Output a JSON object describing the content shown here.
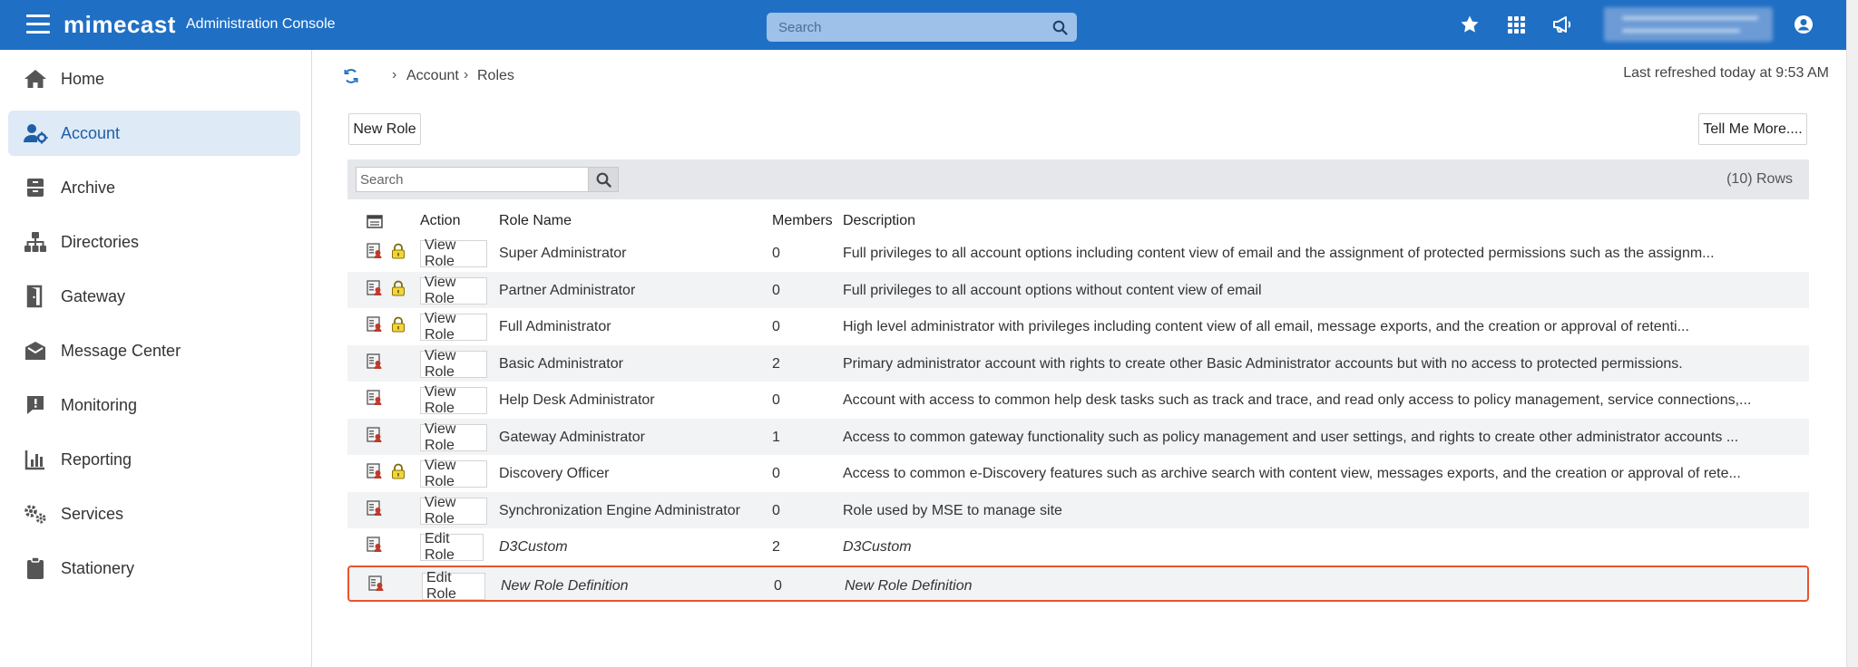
{
  "header": {
    "brand": "mimecast",
    "console_title": "Administration Console",
    "search_placeholder": "Search",
    "icons": [
      "star-icon",
      "apps-grid-icon",
      "megaphone-icon",
      "user-account-icon"
    ],
    "accent_color": "#1f6fc5"
  },
  "sidebar": {
    "items": [
      {
        "label": "Home",
        "icon": "home-icon"
      },
      {
        "label": "Account",
        "icon": "account-settings-icon",
        "active": true
      },
      {
        "label": "Archive",
        "icon": "archive-icon"
      },
      {
        "label": "Directories",
        "icon": "directories-icon"
      },
      {
        "label": "Gateway",
        "icon": "gateway-icon"
      },
      {
        "label": "Message Center",
        "icon": "message-center-icon"
      },
      {
        "label": "Monitoring",
        "icon": "monitoring-icon"
      },
      {
        "label": "Reporting",
        "icon": "reporting-icon"
      },
      {
        "label": "Services",
        "icon": "services-icon"
      },
      {
        "label": "Stationery",
        "icon": "stationery-icon"
      }
    ]
  },
  "breadcrumb": {
    "items": [
      "Account",
      "Roles"
    ]
  },
  "last_refreshed": "Last refreshed today at 9:53 AM",
  "toolbar": {
    "new_role_label": "New Role",
    "tell_me_more_label": "Tell Me More...."
  },
  "grid": {
    "search_placeholder": "Search",
    "row_count": "(10) Rows",
    "columns": {
      "action": "Action",
      "role_name": "Role Name",
      "members": "Members",
      "description": "Description"
    },
    "rows": [
      {
        "action": "View Role",
        "name": "Super Administrator",
        "members": "0",
        "description": "Full privileges to all account options including content view of email and the assignment of protected permissions such as the assignm...",
        "locked": true,
        "italic": false
      },
      {
        "action": "View Role",
        "name": "Partner Administrator",
        "members": "0",
        "description": "Full privileges to all account options without content view of email",
        "locked": true,
        "italic": false
      },
      {
        "action": "View Role",
        "name": "Full Administrator",
        "members": "0",
        "description": "High level administrator with privileges including content view of all email, message exports, and the creation or approval of retenti...",
        "locked": true,
        "italic": false
      },
      {
        "action": "View Role",
        "name": "Basic Administrator",
        "members": "2",
        "description": "Primary administrator account with rights to create other Basic Administrator accounts but with no access to protected permissions.",
        "locked": false,
        "italic": false
      },
      {
        "action": "View Role",
        "name": "Help Desk Administrator",
        "members": "0",
        "description": "Account with access to common help desk tasks such as track and trace, and read only access to policy management, service connections,...",
        "locked": false,
        "italic": false
      },
      {
        "action": "View Role",
        "name": "Gateway Administrator",
        "members": "1",
        "description": "Access to common gateway functionality such as policy management and user settings, and rights to create other administrator accounts ...",
        "locked": false,
        "italic": false
      },
      {
        "action": "View Role",
        "name": "Discovery Officer",
        "members": "0",
        "description": "Access to common e-Discovery features such as archive search with content view, messages exports, and the creation or approval of rete...",
        "locked": true,
        "italic": false
      },
      {
        "action": "View Role",
        "name": "Synchronization Engine Administrator",
        "members": "0",
        "description": "Role used by MSE to manage site",
        "locked": false,
        "italic": false
      },
      {
        "action": "Edit Role",
        "name": "D3Custom",
        "members": "2",
        "description": "D3Custom",
        "locked": false,
        "italic": true
      },
      {
        "action": "Edit Role",
        "name": "New Role Definition",
        "members": "0",
        "description": "New Role Definition",
        "locked": false,
        "italic": true,
        "selected": true
      }
    ]
  }
}
